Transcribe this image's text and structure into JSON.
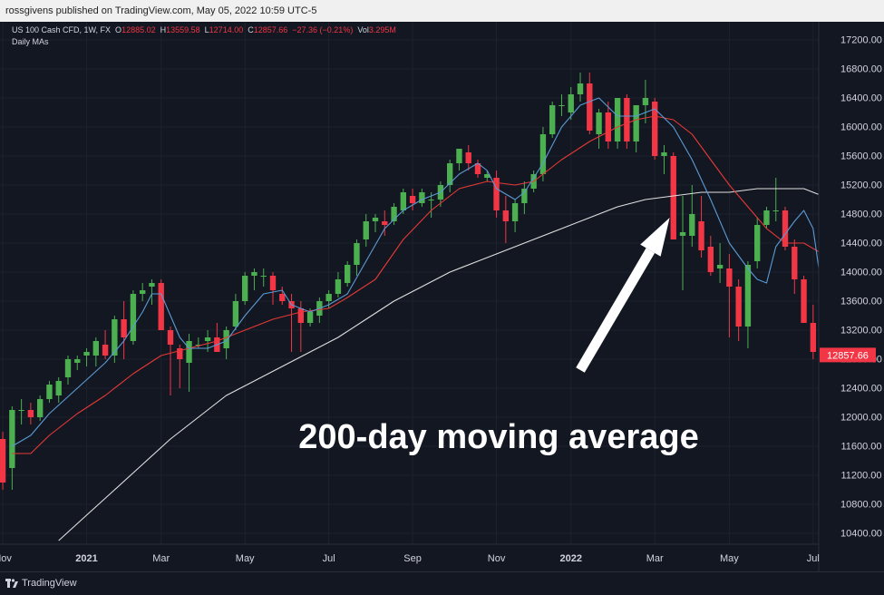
{
  "header": {
    "published_line": "rossgivens published on TradingView.com, May 05, 2022 10:59 UTC-5"
  },
  "legend": {
    "symbol": "US 100 Cash CFD, 1W, FX",
    "o_label": "O",
    "o_value": "12885.02",
    "h_label": "H",
    "h_value": "13559.58",
    "l_label": "L",
    "l_value": "12714.00",
    "c_label": "C",
    "c_value": "12857.66",
    "change": "−27.36 (−0.21%)",
    "vol_label": "Vol",
    "vol_value": "3.295M",
    "indicator": "Daily MAs"
  },
  "annotation": {
    "text": "200-day moving average"
  },
  "footer": {
    "brand": "TradingView"
  },
  "colors": {
    "background": "#131722",
    "up": "#26a69a",
    "up_candle": "#4caf50",
    "down": "#f23645",
    "ma_fast": "#5b9bd5",
    "ma_mid": "#e53935",
    "ma_200": "#e0e0e0",
    "price_tag": "#f23645",
    "grid": "#1e222d"
  },
  "chart_data": {
    "type": "candlestick",
    "interval": "1W",
    "ylim": [
      10250,
      17450
    ],
    "y_ticks": [
      10400,
      10800,
      11200,
      11600,
      12000,
      12400,
      12800,
      13200,
      13600,
      14000,
      14400,
      14800,
      15200,
      15600,
      16000,
      16400,
      16800,
      17200
    ],
    "y_tick_labels": [
      "10400.00",
      "10800.00",
      "11200.00",
      "11600.00",
      "12000.00",
      "12400.00",
      "12800.00",
      "13200.00",
      "13600.00",
      "14000.00",
      "14400.00",
      "14800.00",
      "15200.00",
      "15600.00",
      "16000.00",
      "16400.00",
      "16800.00",
      "17200.00"
    ],
    "x_ticks": [
      {
        "label": "Nov",
        "week": 0
      },
      {
        "label": "2021",
        "week": 9
      },
      {
        "label": "Mar",
        "week": 17
      },
      {
        "label": "May",
        "week": 26
      },
      {
        "label": "Jul",
        "week": 35
      },
      {
        "label": "Sep",
        "week": 44
      },
      {
        "label": "Nov",
        "week": 53
      },
      {
        "label": "2022",
        "week": 61
      },
      {
        "label": "Mar",
        "week": 70
      },
      {
        "label": "May",
        "week": 78
      },
      {
        "label": "Jul",
        "week": 87
      }
    ],
    "x_range_weeks": [
      -0.3,
      87.6
    ],
    "last_price": 12857.66,
    "last_price_label": "12857.66",
    "candles": [
      [
        11700,
        11800,
        11000,
        11100
      ],
      [
        11300,
        12150,
        11000,
        12100
      ],
      [
        12100,
        12250,
        11900,
        12100
      ],
      [
        12100,
        12200,
        11900,
        12000
      ],
      [
        12000,
        12300,
        11950,
        12250
      ],
      [
        12250,
        12500,
        12200,
        12450
      ],
      [
        12300,
        12550,
        12200,
        12500
      ],
      [
        12550,
        12850,
        12450,
        12800
      ],
      [
        12750,
        12850,
        12650,
        12800
      ],
      [
        12850,
        12950,
        12700,
        12900
      ],
      [
        12850,
        13100,
        12700,
        13050
      ],
      [
        13000,
        13200,
        12800,
        12850
      ],
      [
        12850,
        13400,
        12750,
        13350
      ],
      [
        13350,
        13600,
        12800,
        13100
      ],
      [
        13050,
        13750,
        13000,
        13700
      ],
      [
        13700,
        13850,
        13600,
        13750
      ],
      [
        13800,
        13900,
        13550,
        13850
      ],
      [
        13850,
        13900,
        13200,
        13200
      ],
      [
        13200,
        13250,
        12300,
        13000
      ],
      [
        12950,
        13000,
        12400,
        12800
      ],
      [
        12750,
        13150,
        12350,
        13050
      ],
      [
        13000,
        13100,
        12950,
        13000
      ],
      [
        13050,
        13200,
        12900,
        13100
      ],
      [
        13100,
        13300,
        12900,
        12900
      ],
      [
        12950,
        13250,
        12800,
        13200
      ],
      [
        13250,
        13700,
        13200,
        13600
      ],
      [
        13600,
        14000,
        13550,
        13950
      ],
      [
        13950,
        14050,
        13750,
        14000
      ],
      [
        13950,
        14050,
        13800,
        13950
      ],
      [
        13950,
        14000,
        13550,
        13750
      ],
      [
        13700,
        13800,
        13550,
        13600
      ],
      [
        13600,
        13700,
        12900,
        13500
      ],
      [
        13500,
        13600,
        12900,
        13300
      ],
      [
        13300,
        13500,
        13250,
        13450
      ],
      [
        13400,
        13650,
        13300,
        13600
      ],
      [
        13600,
        13750,
        13500,
        13700
      ],
      [
        13700,
        14000,
        13650,
        13900
      ],
      [
        13850,
        14150,
        13800,
        14100
      ],
      [
        14100,
        14450,
        13950,
        14400
      ],
      [
        14450,
        14800,
        14350,
        14700
      ],
      [
        14700,
        14800,
        14550,
        14750
      ],
      [
        14700,
        14850,
        14500,
        14650
      ],
      [
        14700,
        14950,
        14650,
        14900
      ],
      [
        14850,
        15150,
        14800,
        15100
      ],
      [
        15050,
        15150,
        14850,
        14950
      ],
      [
        14950,
        15150,
        14900,
        15100
      ],
      [
        15000,
        15100,
        14750,
        15000
      ],
      [
        15000,
        15250,
        14900,
        15200
      ],
      [
        15200,
        15550,
        15100,
        15500
      ],
      [
        15500,
        15700,
        15400,
        15700
      ],
      [
        15650,
        15750,
        15400,
        15500
      ],
      [
        15500,
        15550,
        15300,
        15350
      ],
      [
        15300,
        15400,
        15250,
        15350
      ],
      [
        15300,
        15400,
        14750,
        14850
      ],
      [
        14850,
        15050,
        14400,
        14700
      ],
      [
        14700,
        15000,
        14550,
        14950
      ],
      [
        14950,
        15250,
        14800,
        15150
      ],
      [
        15150,
        15400,
        15100,
        15350
      ],
      [
        15350,
        16000,
        15250,
        15900
      ],
      [
        15900,
        16350,
        15850,
        16300
      ],
      [
        16300,
        16450,
        16150,
        16300
      ],
      [
        16200,
        16550,
        16100,
        16450
      ],
      [
        16450,
        16750,
        16350,
        16600
      ],
      [
        16600,
        16750,
        15900,
        15950
      ],
      [
        15900,
        16250,
        15700,
        16200
      ],
      [
        16200,
        16350,
        15700,
        15800
      ],
      [
        15800,
        16400,
        15700,
        16400
      ],
      [
        16400,
        16450,
        15700,
        15800
      ],
      [
        15800,
        16300,
        15650,
        16300
      ],
      [
        16300,
        16650,
        16050,
        16400
      ],
      [
        16350,
        16400,
        15550,
        15600
      ],
      [
        15600,
        15750,
        15350,
        15650
      ],
      [
        15600,
        15650,
        14450,
        14450
      ],
      [
        14500,
        15050,
        13750,
        14550
      ],
      [
        14500,
        15200,
        14350,
        14800
      ],
      [
        14700,
        15050,
        14200,
        14300
      ],
      [
        14350,
        14500,
        13950,
        14000
      ],
      [
        14050,
        14400,
        13850,
        14100
      ],
      [
        14050,
        14250,
        13100,
        13800
      ],
      [
        13800,
        13900,
        13050,
        13250
      ],
      [
        13250,
        14150,
        12950,
        14100
      ],
      [
        14150,
        14750,
        14050,
        14650
      ],
      [
        14650,
        14900,
        14600,
        14850
      ],
      [
        14850,
        15300,
        14700,
        14850
      ],
      [
        14850,
        14900,
        14300,
        14350
      ],
      [
        14350,
        14450,
        13700,
        13900
      ],
      [
        13900,
        13950,
        13300,
        13300
      ],
      [
        13300,
        13550,
        12800,
        12900
      ],
      [
        12885.02,
        13559.58,
        12714.0,
        12857.66
      ]
    ],
    "ma_fast": [
      [
        1,
        11600
      ],
      [
        3,
        11750
      ],
      [
        5,
        12050
      ],
      [
        8,
        12400
      ],
      [
        11,
        12750
      ],
      [
        13,
        13050
      ],
      [
        15,
        13450
      ],
      [
        16,
        13700
      ],
      [
        17,
        13700
      ],
      [
        18,
        13400
      ],
      [
        19,
        13100
      ],
      [
        20,
        12950
      ],
      [
        22,
        12950
      ],
      [
        24,
        13050
      ],
      [
        26,
        13400
      ],
      [
        28,
        13700
      ],
      [
        30,
        13750
      ],
      [
        31,
        13550
      ],
      [
        33,
        13450
      ],
      [
        35,
        13550
      ],
      [
        37,
        13700
      ],
      [
        39,
        14150
      ],
      [
        41,
        14600
      ],
      [
        43,
        14850
      ],
      [
        45,
        15000
      ],
      [
        47,
        15100
      ],
      [
        49,
        15350
      ],
      [
        51,
        15500
      ],
      [
        52,
        15400
      ],
      [
        53,
        15150
      ],
      [
        55,
        15000
      ],
      [
        56,
        15100
      ],
      [
        58,
        15500
      ],
      [
        60,
        16000
      ],
      [
        62,
        16300
      ],
      [
        64,
        16400
      ],
      [
        66,
        16150
      ],
      [
        68,
        16150
      ],
      [
        70,
        16250
      ],
      [
        72,
        16000
      ],
      [
        74,
        15550
      ],
      [
        76,
        15000
      ],
      [
        78,
        14400
      ],
      [
        80,
        14050
      ],
      [
        81,
        13900
      ],
      [
        82,
        13850
      ],
      [
        83,
        14350
      ],
      [
        85,
        14700
      ],
      [
        86,
        14850
      ],
      [
        87,
        14600
      ],
      [
        88,
        13700
      ]
    ],
    "ma_mid": [
      [
        1,
        11500
      ],
      [
        3,
        11500
      ],
      [
        5,
        11750
      ],
      [
        8,
        12050
      ],
      [
        11,
        12300
      ],
      [
        14,
        12600
      ],
      [
        17,
        12850
      ],
      [
        20,
        12950
      ],
      [
        23,
        13050
      ],
      [
        26,
        13200
      ],
      [
        29,
        13350
      ],
      [
        32,
        13450
      ],
      [
        35,
        13500
      ],
      [
        37,
        13650
      ],
      [
        40,
        13900
      ],
      [
        43,
        14450
      ],
      [
        46,
        14850
      ],
      [
        49,
        15150
      ],
      [
        52,
        15250
      ],
      [
        55,
        15200
      ],
      [
        57,
        15250
      ],
      [
        60,
        15550
      ],
      [
        63,
        15800
      ],
      [
        66,
        16000
      ],
      [
        68,
        16100
      ],
      [
        70,
        16150
      ],
      [
        72,
        16100
      ],
      [
        74,
        15900
      ],
      [
        76,
        15550
      ],
      [
        78,
        15200
      ],
      [
        80,
        14900
      ],
      [
        82,
        14600
      ],
      [
        84,
        14400
      ],
      [
        86,
        14400
      ],
      [
        88,
        14250
      ],
      [
        89,
        14000
      ]
    ],
    "ma_200": [
      [
        6,
        10300
      ],
      [
        9,
        10650
      ],
      [
        12,
        11000
      ],
      [
        15,
        11350
      ],
      [
        18,
        11700
      ],
      [
        21,
        12000
      ],
      [
        24,
        12300
      ],
      [
        27,
        12500
      ],
      [
        30,
        12700
      ],
      [
        33,
        12900
      ],
      [
        36,
        13100
      ],
      [
        39,
        13350
      ],
      [
        42,
        13600
      ],
      [
        45,
        13800
      ],
      [
        48,
        14000
      ],
      [
        51,
        14150
      ],
      [
        54,
        14300
      ],
      [
        57,
        14450
      ],
      [
        60,
        14600
      ],
      [
        63,
        14750
      ],
      [
        66,
        14900
      ],
      [
        69,
        15000
      ],
      [
        72,
        15050
      ],
      [
        75,
        15100
      ],
      [
        78,
        15100
      ],
      [
        81,
        15150
      ],
      [
        84,
        15150
      ],
      [
        86,
        15150
      ],
      [
        88,
        15050
      ]
    ],
    "arrow": {
      "from": [
        62.0,
        12650
      ],
      "to": [
        71.6,
        14750
      ]
    }
  }
}
